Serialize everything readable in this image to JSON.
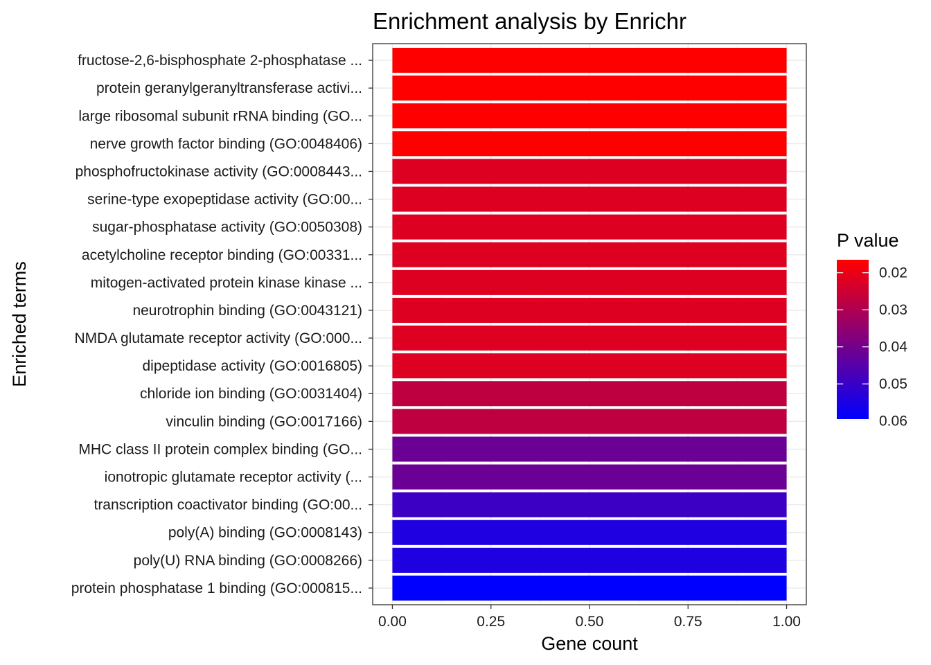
{
  "chart_data": {
    "type": "bar",
    "orientation": "horizontal",
    "title": "Enrichment analysis by Enrichr",
    "xlabel": "Gene count",
    "ylabel": "Enriched terms",
    "xlim": [
      -0.05,
      1.05
    ],
    "xticks": [
      0,
      0.25,
      0.5,
      0.75,
      1
    ],
    "xtick_labels": [
      "0.00",
      "0.25",
      "0.50",
      "0.75",
      "1.00"
    ],
    "grid": true,
    "categories": [
      "fructose-2,6-bisphosphate 2-phosphatase ...",
      "protein geranylgeranyltransferase activi...",
      "large ribosomal subunit rRNA binding (GO...",
      "nerve growth factor binding (GO:0048406)",
      "phosphofructokinase activity (GO:0008443...",
      "serine-type exopeptidase activity (GO:00...",
      "sugar-phosphatase activity (GO:0050308)",
      "acetylcholine receptor binding (GO:00331...",
      "mitogen-activated protein kinase kinase ...",
      "neurotrophin binding (GO:0043121)",
      "NMDA glutamate receptor activity (GO:000...",
      "dipeptidase activity (GO:0016805)",
      "chloride ion binding (GO:0031404)",
      "vinculin binding (GO:0017166)",
      "MHC class II protein complex binding (GO...",
      "ionotropic glutamate receptor activity (...",
      "transcription coactivator binding (GO:00...",
      "poly(A) binding (GO:0008143)",
      "poly(U) RNA binding (GO:0008266)",
      "protein phosphatase 1 binding (GO:000815..."
    ],
    "values": [
      1,
      1,
      1,
      1,
      1,
      1,
      1,
      1,
      1,
      1,
      1,
      1,
      1,
      1,
      1,
      1,
      1,
      1,
      1,
      1
    ],
    "p_values": [
      0.0165,
      0.0165,
      0.0165,
      0.0165,
      0.022,
      0.022,
      0.022,
      0.022,
      0.022,
      0.022,
      0.022,
      0.022,
      0.0275,
      0.0275,
      0.0415,
      0.0415,
      0.0495,
      0.0545,
      0.0545,
      0.0595
    ],
    "legend": {
      "title": "P value",
      "position": "right",
      "range": [
        0.0165,
        0.0595
      ],
      "ticks": [
        0.02,
        0.03,
        0.04,
        0.05,
        0.06
      ],
      "tick_labels": [
        "0.02",
        "0.03",
        "0.04",
        "0.05",
        "0.06"
      ],
      "low_color": "#ff0000",
      "high_color": "#0000ff"
    }
  }
}
